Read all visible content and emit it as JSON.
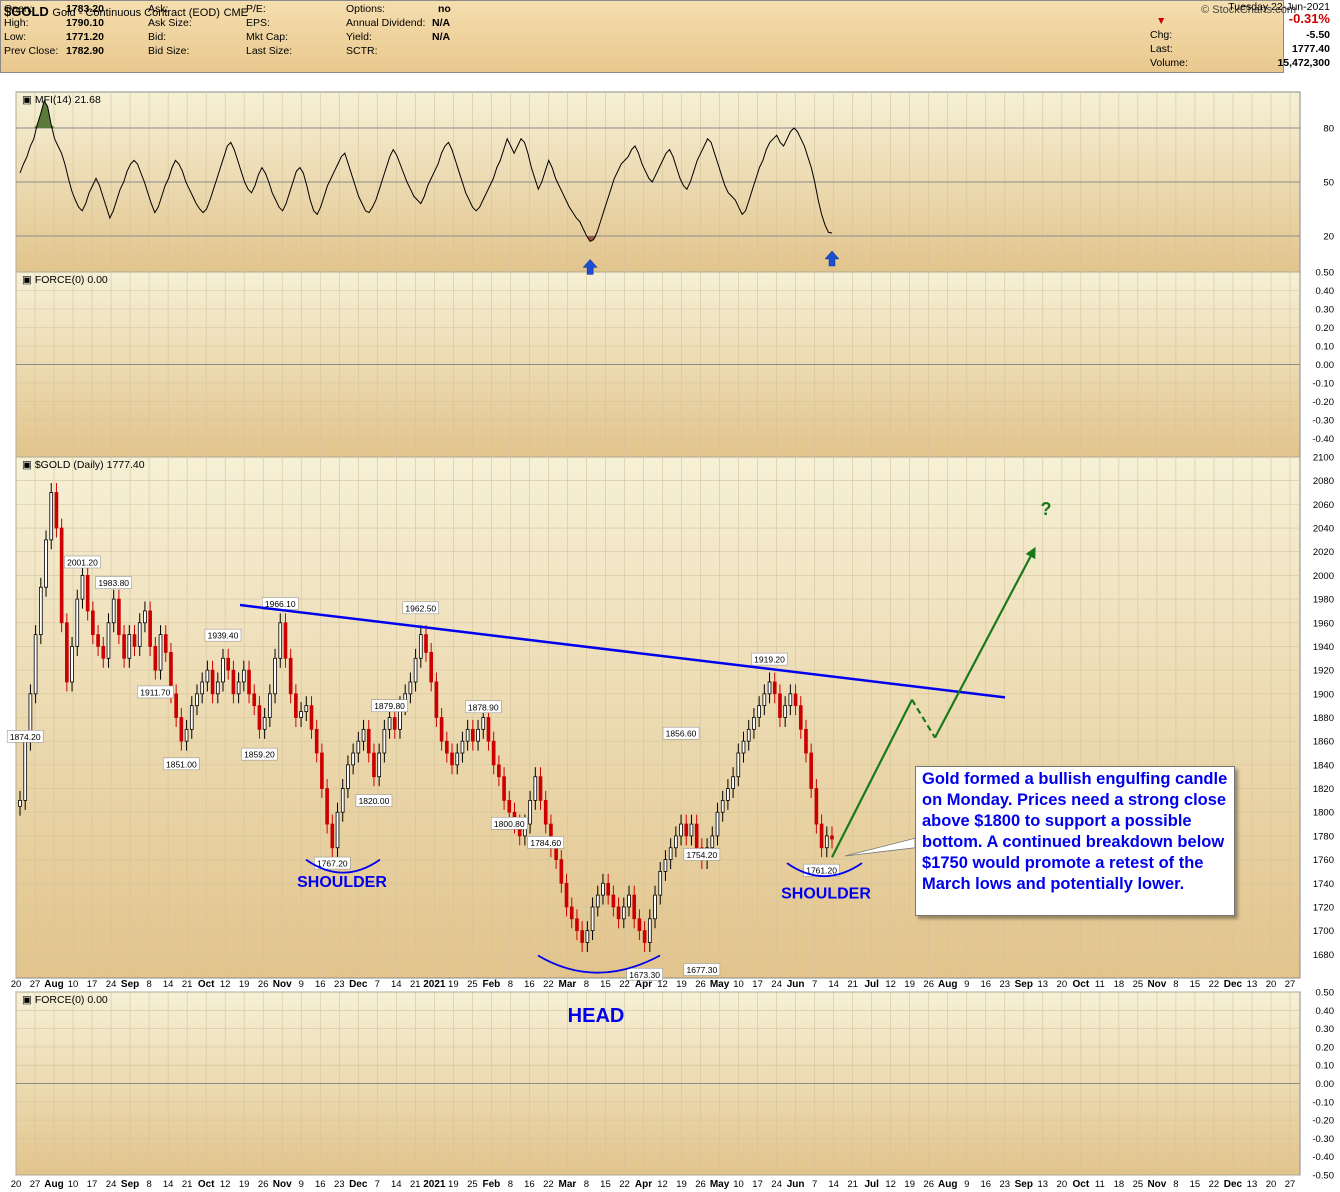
{
  "header": {
    "symbol": "$GOLD",
    "description": "Gold - Continuous Contract (EOD)",
    "exchange": "CME",
    "brand": "© StockCharts.com"
  },
  "quote": {
    "open_label": "Open:",
    "open": "1783.20",
    "high_label": "High:",
    "high": "1790.10",
    "low_label": "Low:",
    "low": "1771.20",
    "prev_close_label": "Prev Close:",
    "prev_close": "1782.90",
    "ask_label": "Ask:",
    "ask_size_label": "Ask Size:",
    "bid_label": "Bid:",
    "bid_size_label": "Bid Size:",
    "pe_label": "P/E:",
    "eps_label": "EPS:",
    "mkt_cap_label": "Mkt Cap:",
    "last_size_label": "Last Size:",
    "options_label": "Options:",
    "options": "no",
    "annual_dividend_label": "Annual Dividend:",
    "annual_dividend": "N/A",
    "yield_label": "Yield:",
    "yield": "N/A",
    "sctr_label": "SCTR:",
    "date": "Tuesday  22-Jun-2021",
    "pct_change": "-0.31%",
    "chg_label": "Chg:",
    "chg": "-5.50",
    "last_label": "Last:",
    "last": "1777.40",
    "volume_label": "Volume:",
    "volume": "15,472,300"
  },
  "colors": {
    "up_candle": "#000000",
    "down_candle": "#cc0000",
    "trendline": "#0000ee",
    "projection": "#1a7a1a",
    "annotation_text": "#0000ee",
    "mfi_overbought_fill": "#5a7a3a",
    "mfi_oversold_fill": "#9a5a40",
    "arrow": "#1a4fd0"
  },
  "chart_data": [
    {
      "type": "line",
      "indicator": "MFI",
      "label": "MFI(14) 21.68",
      "ylim": [
        0,
        100
      ],
      "yticks": [
        80,
        50,
        20
      ],
      "y": [
        55,
        60,
        64,
        70,
        74,
        82,
        88,
        95,
        92,
        82,
        74,
        70,
        66,
        60,
        52,
        45,
        40,
        36,
        34,
        38,
        44,
        48,
        52,
        48,
        42,
        36,
        30,
        34,
        40,
        46,
        50,
        56,
        60,
        62,
        60,
        55,
        50,
        44,
        38,
        33,
        36,
        42,
        48,
        52,
        58,
        62,
        60,
        56,
        50,
        46,
        42,
        38,
        35,
        33,
        35,
        40,
        46,
        52,
        58,
        64,
        70,
        72,
        68,
        62,
        56,
        50,
        46,
        44,
        48,
        54,
        58,
        55,
        50,
        44,
        40,
        36,
        34,
        38,
        44,
        50,
        56,
        58,
        55,
        48,
        40,
        34,
        32,
        36,
        42,
        48,
        52,
        56,
        60,
        64,
        66,
        60,
        54,
        48,
        42,
        38,
        34,
        33,
        36,
        40,
        46,
        52,
        58,
        64,
        68,
        65,
        60,
        55,
        50,
        46,
        42,
        40,
        38,
        42,
        48,
        52,
        56,
        60,
        66,
        70,
        72,
        68,
        62,
        56,
        50,
        44,
        40,
        36,
        34,
        36,
        40,
        44,
        48,
        52,
        58,
        62,
        68,
        74,
        70,
        66,
        70,
        74,
        72,
        66,
        58,
        52,
        46,
        50,
        56,
        62,
        58,
        52,
        48,
        44,
        40,
        36,
        33,
        30,
        28,
        24,
        20,
        17,
        18,
        22,
        28,
        34,
        40,
        46,
        52,
        56,
        60,
        62,
        64,
        68,
        70,
        66,
        60,
        56,
        52,
        50,
        54,
        58,
        62,
        66,
        68,
        64,
        58,
        52,
        48,
        46,
        50,
        56,
        62,
        66,
        70,
        74,
        72,
        66,
        60,
        54,
        48,
        44,
        42,
        40,
        36,
        32,
        34,
        40,
        46,
        52,
        58,
        62,
        68,
        72,
        74,
        76,
        72,
        70,
        74,
        78,
        80,
        78,
        74,
        70,
        64,
        58,
        50,
        40,
        32,
        26,
        22,
        21.68
      ]
    },
    {
      "type": "line",
      "indicator": "FORCE",
      "label": "FORCE(0) 0.00",
      "ylim": [
        -0.5,
        0.5
      ],
      "yticks": [
        0.5,
        0.4,
        0.3,
        0.2,
        0.1,
        0.0,
        -0.1,
        -0.2,
        -0.3,
        -0.4
      ],
      "y": []
    },
    {
      "type": "candlestick",
      "label": "$GOLD (Daily) 1777.40",
      "ylim": [
        1660,
        2100
      ],
      "yticks": [
        2100,
        2080,
        2060,
        2040,
        2020,
        2000,
        1980,
        1960,
        1940,
        1920,
        1900,
        1880,
        1860,
        1840,
        1820,
        1800,
        1780,
        1760,
        1740,
        1720,
        1700,
        1680
      ],
      "close": [
        1810,
        1860,
        1900,
        1950,
        1990,
        2030,
        2070,
        2040,
        1960,
        1910,
        1940,
        1980,
        2000,
        1970,
        1950,
        1940,
        1930,
        1960,
        1980,
        1950,
        1930,
        1950,
        1940,
        1960,
        1970,
        1940,
        1920,
        1950,
        1935,
        1900,
        1880,
        1860,
        1870,
        1890,
        1900,
        1910,
        1920,
        1900,
        1910,
        1930,
        1920,
        1900,
        1910,
        1920,
        1900,
        1890,
        1870,
        1880,
        1900,
        1930,
        1960,
        1930,
        1900,
        1880,
        1885,
        1890,
        1870,
        1850,
        1820,
        1790,
        1770,
        1800,
        1820,
        1840,
        1850,
        1860,
        1870,
        1850,
        1830,
        1850,
        1870,
        1880,
        1870,
        1890,
        1900,
        1910,
        1930,
        1950,
        1935,
        1910,
        1880,
        1860,
        1850,
        1840,
        1850,
        1860,
        1870,
        1860,
        1870,
        1880,
        1860,
        1840,
        1830,
        1810,
        1800,
        1790,
        1780,
        1790,
        1810,
        1830,
        1810,
        1790,
        1770,
        1760,
        1740,
        1720,
        1710,
        1700,
        1690,
        1700,
        1720,
        1730,
        1740,
        1730,
        1720,
        1710,
        1720,
        1730,
        1710,
        1700,
        1690,
        1710,
        1730,
        1750,
        1760,
        1770,
        1780,
        1790,
        1780,
        1790,
        1770,
        1760,
        1770,
        1780,
        1800,
        1810,
        1820,
        1830,
        1850,
        1860,
        1870,
        1880,
        1890,
        1900,
        1910,
        1900,
        1880,
        1890,
        1900,
        1890,
        1870,
        1850,
        1820,
        1790,
        1770,
        1780,
        1777.4
      ],
      "price_labels": [
        "1874.20",
        "2001.20",
        "1983.80",
        "1911.70",
        "1851.00",
        "1939.40",
        "1859.20",
        "1966.10",
        "1767.20",
        "1879.80",
        "1820.00",
        "1962.50",
        "1800.80",
        "1878.90",
        "1784.60",
        "1856.60",
        "1673.30",
        "1754.20",
        "1677.30",
        "1919.20",
        "1761.20"
      ],
      "price_label_values": [
        1874.2,
        2001.2,
        1983.8,
        1911.7,
        1851.0,
        1939.4,
        1859.2,
        1966.1,
        1767.2,
        1879.8,
        1820.0,
        1962.5,
        1800.8,
        1878.9,
        1784.6,
        1856.6,
        1673.3,
        1754.2,
        1677.3,
        1919.2,
        1761.2
      ],
      "annotations": {
        "shoulder_left": "SHOULDER",
        "head": "HEAD",
        "shoulder_right": "SHOULDER",
        "question": "?",
        "note": "Gold formed a bullish engulfing candle on Monday. Prices need a strong close above $1800 to support a possible bottom. A continued breakdown below $1750 would promote a retest of the March lows and potentially lower."
      }
    },
    {
      "type": "line",
      "indicator": "FORCE",
      "label": "FORCE(0) 0.00",
      "ylim": [
        -0.5,
        0.5
      ],
      "yticks": [
        0.5,
        0.4,
        0.3,
        0.2,
        0.1,
        0.0,
        -0.1,
        -0.2,
        -0.3,
        -0.4,
        -0.5
      ],
      "y": []
    }
  ],
  "x_axis": {
    "labels": [
      "20",
      "27",
      "Aug",
      "10",
      "17",
      "24",
      "Sep",
      "8",
      "14",
      "21",
      "Oct",
      "12",
      "19",
      "26",
      "Nov",
      "9",
      "16",
      "23",
      "Dec",
      "7",
      "14",
      "21",
      "2021",
      "19",
      "25",
      "Feb",
      "8",
      "16",
      "22",
      "Mar",
      "8",
      "15",
      "22",
      "Apr",
      "12",
      "19",
      "26",
      "May",
      "10",
      "17",
      "24",
      "Jun",
      "7",
      "14",
      "21",
      "Jul",
      "12",
      "19",
      "26",
      "Aug",
      "9",
      "16",
      "23",
      "Sep",
      "13",
      "20",
      "Oct",
      "11",
      "18",
      "25",
      "Nov",
      "8",
      "15",
      "22",
      "Dec",
      "13",
      "20",
      "27"
    ],
    "bold": [
      "Aug",
      "Sep",
      "Oct",
      "Nov",
      "Dec",
      "2021",
      "Feb",
      "Mar",
      "Apr",
      "May",
      "Jun",
      "Jul",
      "Aug",
      "Sep",
      "Oct",
      "Nov",
      "Dec"
    ]
  }
}
